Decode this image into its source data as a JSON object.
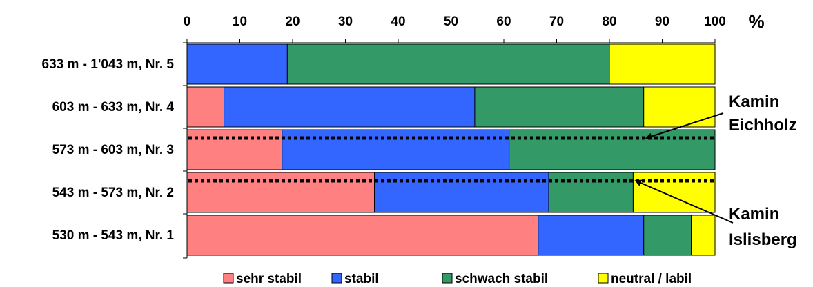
{
  "chart_data": {
    "type": "bar",
    "orientation": "horizontal",
    "stacked": true,
    "unit": "%",
    "xlim": [
      0,
      100
    ],
    "x_ticks": [
      "0",
      "10",
      "20",
      "30",
      "40",
      "50",
      "60",
      "70",
      "80",
      "90",
      "100"
    ],
    "categories": [
      "633 m - 1'043 m, Nr. 5",
      "603 m - 633 m, Nr. 4",
      "573 m - 603 m, Nr. 3",
      "543 m - 573 m, Nr. 2",
      "530 m - 543 m, Nr. 1"
    ],
    "series": [
      {
        "name": "sehr stabil",
        "color": "#ff8080",
        "values": [
          0,
          7,
          18,
          35.5,
          66.5
        ]
      },
      {
        "name": "stabil",
        "color": "#3366ff",
        "values": [
          19,
          47.5,
          43,
          33,
          20
        ]
      },
      {
        "name": "schwach stabil",
        "color": "#339966",
        "values": [
          61,
          32,
          39,
          16,
          9
        ]
      },
      {
        "name": "neutral / labil",
        "color": "#ffff00",
        "values": [
          20,
          13.5,
          0,
          15.5,
          4.5
        ]
      }
    ],
    "legend_position": "bottom",
    "annotations": [
      {
        "lines": [
          "Kamin",
          "Eichholz"
        ],
        "category": "573 m - 603 m, Nr. 3",
        "arrow_to_value": 87
      },
      {
        "lines": [
          "Kamin",
          "Islisberg"
        ],
        "category": "543 m - 573 m, Nr. 2",
        "arrow_to_value": 85
      }
    ]
  }
}
